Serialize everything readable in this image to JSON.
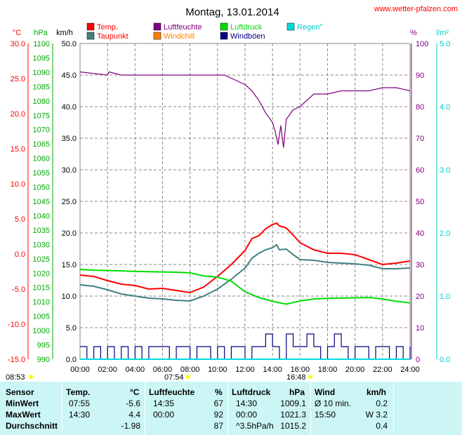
{
  "header": {
    "title": "Montag, 13.01.2014",
    "url": "www.wetter-pfalzen.com"
  },
  "legend": [
    {
      "label": "Temp.",
      "color": "#ff0000"
    },
    {
      "label": "Luftfeuchte",
      "color": "#800080"
    },
    {
      "label": "Luftdruck",
      "color": "#00dd00"
    },
    {
      "label": "Regen°",
      "color": "#00dddd"
    },
    {
      "label": "Taupunkt",
      "color": "#408080"
    },
    {
      "label": "Windchill",
      "color": "#ff8000"
    },
    {
      "label": "Windböen",
      "color": "#000080"
    }
  ],
  "axis_units": {
    "temp": "°C",
    "pressure": "hPa",
    "wind": "km/h",
    "humidity": "%",
    "rain": "l/m²"
  },
  "markers": {
    "sunrise": "08:53",
    "event1": "07:54",
    "event2": "16:48"
  },
  "chart_data": {
    "type": "line",
    "x_range": [
      0,
      24
    ],
    "x_ticks": [
      "00:00",
      "02:00",
      "04:00",
      "06:00",
      "08:00",
      "10:00",
      "12:00",
      "14:00",
      "16:00",
      "18:00",
      "20:00",
      "22:00",
      "24:00"
    ],
    "axes": {
      "temp": {
        "ticks": [
          "30.0",
          "25.0",
          "20.0",
          "15.0",
          "10.0",
          "5.0",
          "0.0",
          "-5.0",
          "-10.0",
          "-15.0"
        ],
        "range": [
          -15,
          30
        ],
        "color": "#ff0000"
      },
      "pressure": {
        "ticks": [
          "1100",
          "1095",
          "1090",
          "1085",
          "1080",
          "1075",
          "1070",
          "1065",
          "1060",
          "1055",
          "1050",
          "1045",
          "1040",
          "1035",
          "1030",
          "1025",
          "1020",
          "1015",
          "1010",
          "1005",
          "1000",
          "995",
          "990"
        ],
        "range": [
          990,
          1100
        ],
        "color": "#00aa00"
      },
      "wind": {
        "ticks": [
          "50.0",
          "45.0",
          "40.0",
          "35.0",
          "30.0",
          "25.0",
          "20.0",
          "15.0",
          "10.0",
          "5.0",
          "0.0"
        ],
        "range": [
          0,
          50
        ],
        "color": "#000000"
      },
      "humidity": {
        "ticks": [
          "100",
          "90",
          "80",
          "70",
          "60",
          "50",
          "40",
          "30",
          "20",
          "10",
          "0"
        ],
        "range": [
          0,
          100
        ],
        "color": "#800080"
      },
      "rain": {
        "ticks": [
          "5.0",
          "4.0",
          "3.0",
          "2.0",
          "1.0",
          "0.0"
        ],
        "range": [
          0,
          5
        ],
        "color": "#00cccc"
      }
    },
    "series": [
      {
        "name": "Temp.",
        "color": "#ff0000",
        "axis": "temp",
        "x": [
          0,
          1,
          2,
          3,
          4,
          5,
          6,
          7,
          8,
          9,
          10,
          11,
          12,
          12.5,
          13,
          13.5,
          14,
          14.3,
          14.5,
          15,
          15.5,
          16,
          17,
          18,
          19,
          20,
          21,
          22,
          23,
          24
        ],
        "y": [
          -3.0,
          -3.2,
          -3.8,
          -4.3,
          -4.5,
          -5.0,
          -4.9,
          -5.2,
          -5.5,
          -4.7,
          -3.2,
          -1.5,
          0.5,
          2.2,
          2.6,
          3.6,
          4.2,
          4.4,
          4.0,
          3.7,
          2.7,
          1.6,
          0.6,
          0.1,
          0.1,
          -0.1,
          -0.8,
          -1.5,
          -1.3,
          -1.0
        ]
      },
      {
        "name": "Taupunkt",
        "color": "#408080",
        "axis": "temp",
        "x": [
          0,
          1,
          2,
          3,
          4,
          5,
          6,
          7,
          8,
          9,
          10,
          11,
          12,
          12.5,
          13,
          13.5,
          14,
          14.3,
          14.5,
          15,
          15.5,
          16,
          17,
          18,
          19,
          20,
          21,
          22,
          23,
          24
        ],
        "y": [
          -4.4,
          -4.6,
          -5.1,
          -5.7,
          -6.0,
          -6.3,
          -6.4,
          -6.6,
          -6.7,
          -6.0,
          -5.0,
          -3.6,
          -2.0,
          -0.6,
          0.1,
          0.6,
          0.9,
          1.3,
          0.6,
          0.7,
          -0.1,
          -0.8,
          -0.9,
          -1.2,
          -1.3,
          -1.4,
          -1.6,
          -2.1,
          -2.1,
          -2.0
        ]
      },
      {
        "name": "Luftfeuchte",
        "color": "#800080",
        "axis": "humidity",
        "x": [
          0,
          2,
          2.1,
          3,
          4,
          6,
          8,
          10,
          10.5,
          11,
          12,
          12.5,
          13,
          13.5,
          14,
          14.2,
          14.4,
          14.6,
          14.8,
          15,
          15.5,
          16,
          17,
          18,
          19,
          20,
          21,
          22,
          23,
          24
        ],
        "y": [
          91,
          90,
          91,
          90,
          90,
          90,
          90,
          90,
          90,
          89,
          87,
          85,
          82,
          78,
          75,
          72,
          68,
          74,
          67,
          76,
          79,
          80,
          84,
          84,
          85,
          85,
          85,
          86,
          86,
          85
        ]
      },
      {
        "name": "Luftdruck",
        "color": "#00dd00",
        "axis": "pressure",
        "x": [
          0,
          1,
          2,
          3,
          4,
          5,
          6,
          7,
          8,
          9,
          10,
          11,
          12,
          13,
          14,
          15,
          16,
          17,
          18,
          19,
          20,
          21,
          22,
          23,
          24
        ],
        "y": [
          1021.3,
          1021.0,
          1020.9,
          1020.8,
          1020.6,
          1020.5,
          1020.4,
          1020.3,
          1020.1,
          1019.0,
          1018.6,
          1017.2,
          1013.5,
          1011.5,
          1010.2,
          1009.2,
          1010.3,
          1011.0,
          1011.2,
          1011.3,
          1011.4,
          1011.5,
          1011.0,
          1010.2,
          1009.6
        ]
      },
      {
        "name": "Windböen",
        "color": "#000080",
        "axis": "wind",
        "x": [
          0,
          0.5,
          1,
          1.5,
          2,
          2.5,
          3,
          3.5,
          4,
          4.5,
          5,
          5.5,
          6,
          6.5,
          7,
          7.5,
          8,
          8.5,
          9,
          9.5,
          10,
          10.5,
          11,
          11.5,
          12,
          12.5,
          13,
          13.5,
          14,
          14.5,
          15,
          15.5,
          16,
          16.5,
          17,
          17.5,
          18,
          18.5,
          19,
          19.5,
          20,
          20.5,
          21,
          21.5,
          22,
          22.5,
          23,
          23.5,
          24
        ],
        "y": [
          2,
          0,
          2,
          0,
          2,
          0,
          2,
          0,
          2,
          0,
          2,
          2,
          2,
          0,
          2,
          2,
          0,
          2,
          2,
          0,
          2,
          0,
          2,
          2,
          0,
          2,
          2,
          4,
          2,
          0,
          4,
          2,
          2,
          4,
          2,
          0,
          2,
          4,
          2,
          0,
          2,
          2,
          0,
          2,
          2,
          0,
          2,
          0,
          2
        ]
      },
      {
        "name": "Regen°",
        "color": "#00dddd",
        "axis": "rain",
        "x": [
          0,
          24
        ],
        "y": [
          0,
          0
        ]
      }
    ]
  },
  "stats": {
    "headers": {
      "sensor": "Sensor",
      "temp": "Temp.",
      "temp_unit": "°C",
      "humidity": "Luftfeuchte",
      "humidity_unit": "%",
      "pressure": "Luftdruck",
      "pressure_unit": "hPa",
      "wind": "Wind",
      "wind_unit": "km/h"
    },
    "rows": [
      {
        "label": "MinWert",
        "temp_time": "07:55",
        "temp_val": "-5.6",
        "hum_time": "14:35",
        "hum_val": "67",
        "press_time": "14:30",
        "press_val": "1009.1",
        "wind_time": "Ø 10 min.",
        "wind_val": "0.2"
      },
      {
        "label": "MaxWert",
        "temp_time": "14:30",
        "temp_val": "4.4",
        "hum_time": "00:00",
        "hum_val": "92",
        "press_time": "00:00",
        "press_val": "1021.3",
        "wind_time": "15:50",
        "wind_val": "W 3.2"
      },
      {
        "label": "Durchschnitt",
        "temp_time": "",
        "temp_val": "-1.98",
        "hum_time": "",
        "hum_val": "87",
        "press_time": "^3.5hPa/h",
        "press_val": "1015.2",
        "wind_time": "",
        "wind_val": "0.4"
      }
    ]
  }
}
